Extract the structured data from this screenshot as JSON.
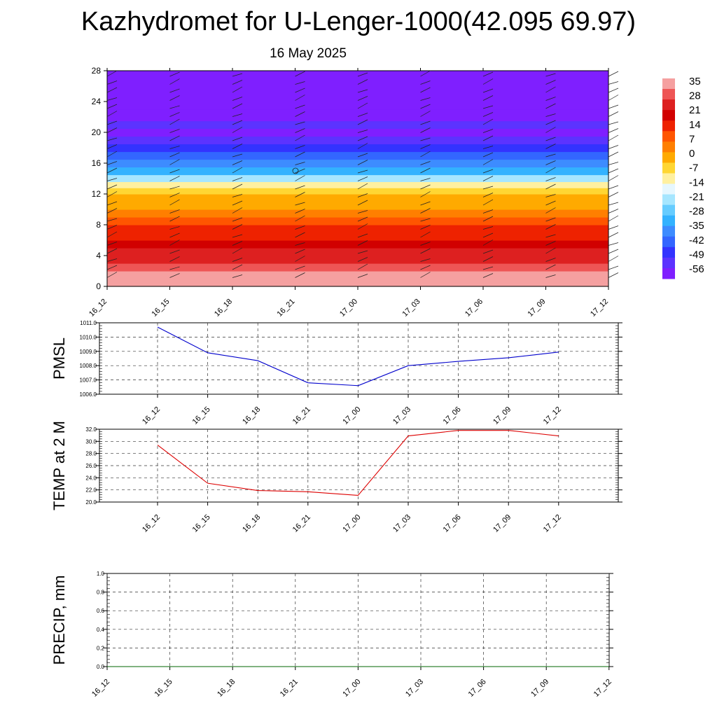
{
  "title": "Kazhydromet for U-Lenger-1000(42.095 69.97)",
  "subtitle": "16 May 2025",
  "colors": {
    "pmsl_line": "#0000cc",
    "temp_line": "#dd0000",
    "precip_line": "#006600",
    "palette": [
      "#7f1fff",
      "#5c33ff",
      "#3333ff",
      "#3366ff",
      "#3d8cff",
      "#33b2ff",
      "#66ccff",
      "#a6e6ff",
      "#e6f7ff",
      "#fff0a0",
      "#ffd633",
      "#ffaa00",
      "#ff7f00",
      "#ff5500",
      "#ee2200",
      "#d10000",
      "#dd2020",
      "#ee5555",
      "#f5a0a0"
    ]
  },
  "chart_data": [
    {
      "type": "heatmap",
      "name": "temperature-cross-section",
      "categories": [
        "16_12",
        "16_15",
        "16_18",
        "16_21",
        "17_00",
        "17_03",
        "17_06",
        "17_09",
        "17_12"
      ],
      "y_ticks": [
        0,
        4,
        8,
        12,
        16,
        20,
        24,
        28
      ],
      "ylim": [
        0,
        28
      ],
      "colorbar_labels": [
        "35",
        "28",
        "21",
        "14",
        "7",
        "0",
        "-7",
        "-14",
        "-21",
        "-28",
        "-35",
        "-42",
        "-49",
        "-56"
      ],
      "colorbar_range": [
        -60,
        36
      ],
      "levels_y": [
        0,
        1,
        2,
        3,
        4,
        5,
        6,
        7,
        8,
        9,
        10,
        11,
        12,
        12.8,
        13.6,
        14.5,
        15.5,
        16.5,
        17.5,
        18.5,
        19.5,
        20.5,
        21.5,
        23,
        28
      ],
      "temperature_profile": [
        34,
        31,
        27,
        24,
        21,
        18,
        15,
        12,
        8,
        4,
        0,
        -4,
        -9,
        -14,
        -22,
        -30,
        -36,
        -42,
        -48,
        -52,
        -56,
        -52,
        -58,
        -60,
        -60
      ]
    },
    {
      "type": "line",
      "name": "pmsl",
      "ylabel": "PMSL",
      "categories": [
        "16_12",
        "16_15",
        "16_18",
        "16_21",
        "17_00",
        "17_03",
        "17_06",
        "17_09",
        "17_12"
      ],
      "y_ticks": [
        "1006.0",
        "1007.0",
        "1008.0",
        "1009.0",
        "1010.0",
        "1011.0"
      ],
      "ylim": [
        1006,
        1011
      ],
      "values": [
        1010.7,
        1008.9,
        1008.35,
        1006.8,
        1006.6,
        1008.0,
        1008.3,
        1008.55,
        1008.95
      ],
      "grid": true
    },
    {
      "type": "line",
      "name": "temp-2m",
      "ylabel": "TEMP at 2 M",
      "categories": [
        "16_12",
        "16_15",
        "16_18",
        "16_21",
        "17_00",
        "17_03",
        "17_06",
        "17_09",
        "17_12"
      ],
      "y_ticks": [
        "20.0",
        "22.0",
        "24.0",
        "26.0",
        "28.0",
        "30.0",
        "32.0"
      ],
      "ylim": [
        20,
        32
      ],
      "values": [
        29.4,
        23.1,
        21.9,
        21.7,
        21.1,
        30.9,
        31.8,
        31.8,
        30.9
      ],
      "grid": true
    },
    {
      "type": "line",
      "name": "precip",
      "ylabel": "PRECIP, mm",
      "categories": [
        "16_12",
        "16_15",
        "16_18",
        "16_21",
        "17_00",
        "17_03",
        "17_06",
        "17_09",
        "17_12"
      ],
      "y_ticks": [
        "0.0",
        "0.2",
        "0.4",
        "0.6",
        "0.8",
        "1.0"
      ],
      "ylim": [
        0,
        1
      ],
      "values": [
        0,
        0,
        0,
        0,
        0,
        0,
        0,
        0,
        0
      ],
      "grid": true
    }
  ]
}
